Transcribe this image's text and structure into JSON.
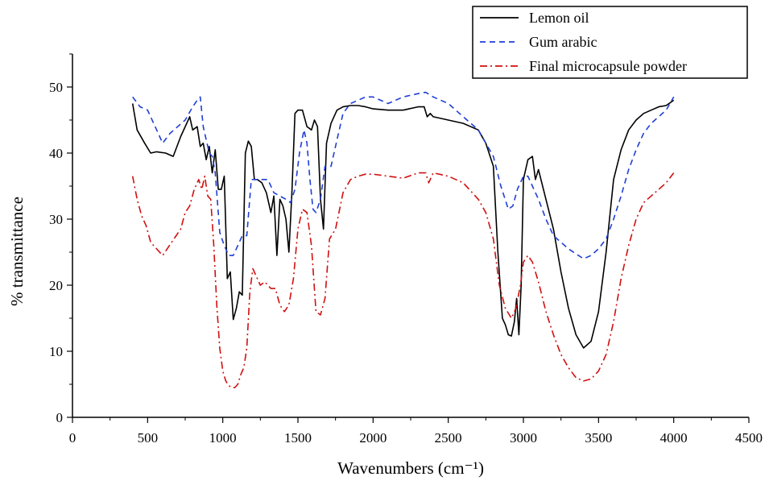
{
  "chart_data": {
    "type": "line",
    "title": "",
    "xlabel": "Wavenumbers (cm⁻¹)",
    "ylabel": "% transmittance",
    "xlim": [
      0,
      4500
    ],
    "ylim": [
      0,
      55
    ],
    "xticks": [
      0,
      500,
      1000,
      1500,
      2000,
      2500,
      3000,
      3500,
      4000,
      4500
    ],
    "xtick_labels": [
      "0",
      "500",
      "1000",
      "1500",
      "2000",
      "2500",
      "3000",
      "3500",
      "4000",
      "4500"
    ],
    "yticks": [
      0,
      10,
      20,
      30,
      40,
      50
    ],
    "ytick_labels": [
      "0",
      "10",
      "20",
      "30",
      "40",
      "50"
    ],
    "legend_position": "top-right",
    "grid": false,
    "series": [
      {
        "name": "Lemon oil",
        "color": "#000000",
        "style": "solid",
        "x": [
          400,
          430,
          480,
          520,
          560,
          620,
          670,
          720,
          780,
          800,
          830,
          850,
          870,
          890,
          910,
          930,
          950,
          970,
          990,
          1010,
          1030,
          1050,
          1070,
          1090,
          1110,
          1130,
          1150,
          1170,
          1190,
          1210,
          1230,
          1260,
          1290,
          1320,
          1340,
          1360,
          1380,
          1400,
          1420,
          1440,
          1460,
          1480,
          1500,
          1530,
          1560,
          1590,
          1610,
          1630,
          1650,
          1670,
          1690,
          1720,
          1760,
          1800,
          1850,
          1900,
          1950,
          2000,
          2100,
          2200,
          2300,
          2340,
          2360,
          2380,
          2400,
          2500,
          2600,
          2700,
          2750,
          2800,
          2830,
          2860,
          2880,
          2900,
          2920,
          2940,
          2955,
          2970,
          2985,
          3000,
          3030,
          3060,
          3080,
          3100,
          3150,
          3200,
          3250,
          3300,
          3350,
          3400,
          3450,
          3500,
          3550,
          3600,
          3650,
          3700,
          3750,
          3800,
          3850,
          3900,
          3950,
          4000
        ],
        "values": [
          47.5,
          43.5,
          41.5,
          40.0,
          40.2,
          40.0,
          39.5,
          42.5,
          45.5,
          43.5,
          44.0,
          41.0,
          41.5,
          39.0,
          41.0,
          37.0,
          40.5,
          34.5,
          34.5,
          36.5,
          21.0,
          22.0,
          14.8,
          16.5,
          19.0,
          18.5,
          40.0,
          41.8,
          41.0,
          36.0,
          36.0,
          35.5,
          34.0,
          31.0,
          33.5,
          24.5,
          33.0,
          32.0,
          30.0,
          25.0,
          34.0,
          46.0,
          46.5,
          46.5,
          44.0,
          43.5,
          45.0,
          44.0,
          33.0,
          28.5,
          41.5,
          44.5,
          46.5,
          47.0,
          47.2,
          47.2,
          47.0,
          46.7,
          46.5,
          46.5,
          47.0,
          47.0,
          45.5,
          46.0,
          45.5,
          45.0,
          44.5,
          43.5,
          41.5,
          38.0,
          25.0,
          15.0,
          14.0,
          12.5,
          12.3,
          14.5,
          18.0,
          12.5,
          20.0,
          36.0,
          39.0,
          39.5,
          36.0,
          37.5,
          33.0,
          28.5,
          22.0,
          16.5,
          12.5,
          10.5,
          11.5,
          16.0,
          25.0,
          36.0,
          40.5,
          43.5,
          45.0,
          46.0,
          46.5,
          47.0,
          47.2,
          48.0
        ]
      },
      {
        "name": "Gum arabic",
        "color": "#1f3fd6",
        "style": "dashed",
        "x": [
          400,
          450,
          500,
          550,
          600,
          650,
          700,
          750,
          800,
          830,
          850,
          870,
          890,
          910,
          930,
          950,
          980,
          1010,
          1040,
          1070,
          1100,
          1130,
          1160,
          1190,
          1220,
          1260,
          1300,
          1340,
          1380,
          1420,
          1450,
          1480,
          1510,
          1540,
          1560,
          1580,
          1600,
          1620,
          1650,
          1680,
          1720,
          1760,
          1800,
          1850,
          1900,
          1950,
          2000,
          2100,
          2150,
          2200,
          2300,
          2350,
          2400,
          2500,
          2600,
          2700,
          2800,
          2850,
          2900,
          2930,
          2960,
          3000,
          3030,
          3060,
          3100,
          3150,
          3200,
          3300,
          3400,
          3450,
          3500,
          3550,
          3600,
          3650,
          3700,
          3750,
          3800,
          3850,
          3900,
          3950,
          4000
        ],
        "values": [
          48.5,
          47.0,
          46.5,
          44.0,
          41.5,
          43.0,
          44.0,
          45.0,
          47.0,
          48.0,
          48.5,
          44.0,
          42.0,
          40.0,
          39.5,
          37.0,
          28.0,
          26.0,
          24.5,
          24.5,
          26.0,
          27.5,
          27.5,
          36.0,
          36.0,
          36.0,
          36.0,
          34.0,
          33.5,
          33.0,
          32.5,
          34.5,
          40.0,
          43.5,
          41.5,
          36.0,
          31.5,
          31.0,
          33.0,
          38.0,
          38.0,
          42.0,
          46.0,
          47.5,
          48.0,
          48.5,
          48.5,
          47.5,
          48.0,
          48.5,
          49.0,
          49.2,
          48.5,
          47.5,
          45.5,
          43.5,
          39.5,
          35.0,
          31.5,
          32.0,
          34.5,
          36.5,
          36.5,
          35.0,
          33.0,
          30.0,
          27.5,
          25.5,
          24.0,
          24.5,
          25.5,
          27.0,
          30.0,
          33.5,
          37.5,
          40.5,
          43.0,
          44.5,
          45.5,
          46.5,
          48.5
        ]
      },
      {
        "name": "Final microcapsule powder",
        "color": "#d01010",
        "style": "dashdot",
        "x": [
          400,
          430,
          460,
          490,
          520,
          560,
          600,
          630,
          660,
          690,
          720,
          750,
          780,
          810,
          840,
          860,
          880,
          900,
          920,
          940,
          960,
          980,
          1000,
          1020,
          1040,
          1060,
          1080,
          1100,
          1120,
          1140,
          1160,
          1180,
          1200,
          1220,
          1250,
          1280,
          1320,
          1350,
          1380,
          1410,
          1440,
          1470,
          1500,
          1530,
          1560,
          1590,
          1620,
          1650,
          1680,
          1710,
          1750,
          1800,
          1850,
          1900,
          1950,
          2000,
          2100,
          2200,
          2300,
          2350,
          2370,
          2400,
          2500,
          2600,
          2700,
          2750,
          2800,
          2840,
          2880,
          2920,
          2950,
          2980,
          3000,
          3030,
          3060,
          3100,
          3150,
          3200,
          3250,
          3300,
          3350,
          3400,
          3450,
          3500,
          3550,
          3600,
          3650,
          3700,
          3750,
          3800,
          3850,
          3900,
          3950,
          4000
        ],
        "values": [
          36.5,
          33.0,
          30.5,
          29.0,
          26.5,
          25.5,
          24.5,
          25.5,
          26.5,
          27.5,
          28.5,
          31.0,
          32.0,
          34.5,
          36.0,
          34.5,
          36.5,
          33.5,
          33.0,
          26.0,
          17.0,
          10.5,
          7.0,
          5.5,
          4.8,
          4.5,
          4.5,
          5.0,
          6.5,
          7.5,
          10.5,
          19.0,
          22.5,
          21.5,
          20.0,
          20.5,
          19.5,
          19.5,
          17.0,
          16.0,
          17.0,
          21.0,
          28.5,
          31.5,
          31.0,
          26.0,
          16.0,
          15.5,
          18.0,
          27.0,
          28.5,
          34.0,
          36.0,
          36.5,
          36.8,
          36.8,
          36.5,
          36.2,
          37.0,
          37.0,
          35.5,
          37.0,
          36.5,
          35.5,
          33.0,
          31.0,
          27.0,
          20.0,
          16.5,
          15.0,
          16.5,
          20.0,
          23.5,
          24.5,
          23.5,
          20.5,
          16.0,
          12.5,
          9.5,
          7.5,
          6.0,
          5.5,
          5.8,
          7.0,
          9.5,
          14.5,
          21.0,
          26.0,
          30.0,
          32.5,
          33.5,
          34.5,
          35.5,
          37.0
        ]
      }
    ]
  }
}
